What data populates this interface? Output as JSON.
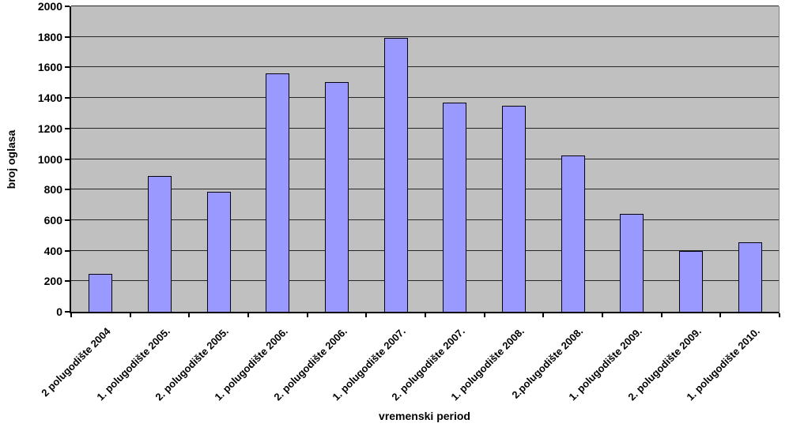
{
  "chart_data": {
    "type": "bar",
    "xlabel": "vremenski period",
    "ylabel": "broj oglasa",
    "categories": [
      "2 polugodište 2004",
      "1. polugodište 2005.",
      "2. polugodište 2005.",
      "1. polugodište 2006.",
      "2. polugodište 2006.",
      "1. polugodište 2007.",
      "2. polugodište 2007.",
      "1. polugodište 2008.",
      "2.polugodište 2008.",
      "1. polugodište 2009.",
      "2. polugodište 2009.",
      "1. polugodište 2010."
    ],
    "values": [
      250,
      890,
      785,
      1560,
      1505,
      1795,
      1370,
      1350,
      1025,
      640,
      400,
      455
    ],
    "ylim": [
      0,
      2000
    ],
    "yticks": [
      0,
      200,
      400,
      600,
      800,
      1000,
      1200,
      1400,
      1600,
      1800,
      2000
    ],
    "grid": true,
    "legend": "none",
    "x_tick_rotation_deg": 45,
    "colors": {
      "bar_fill": "#9999FF",
      "bar_border": "#000010",
      "plot_bg": "#C0C0C0",
      "gridline": "#262626",
      "axis": "#000000",
      "text": "#000000",
      "background": "#FFFFFF"
    }
  }
}
